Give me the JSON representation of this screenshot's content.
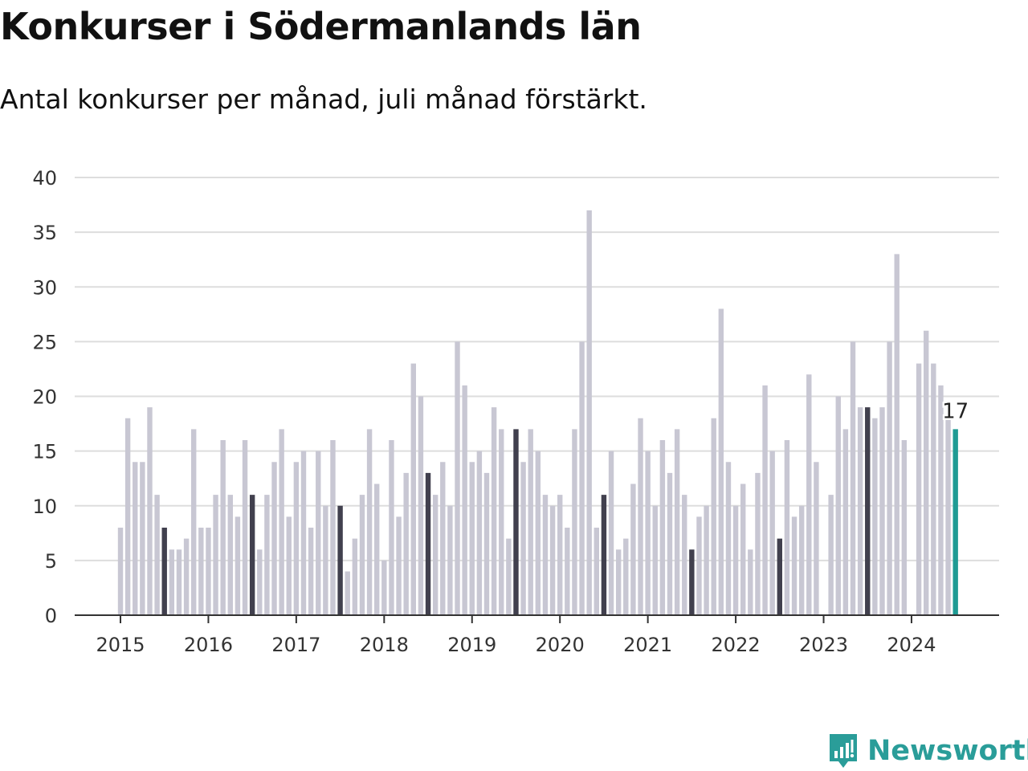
{
  "title": "Konkurser i Södermanlands län",
  "subtitle": "Antal konkurser per månad, juli månad förstärkt.",
  "brand": {
    "name": "Newsworthy"
  },
  "colors": {
    "bar": "#c8c7d3",
    "july": "#41404e",
    "latest": "#1f9b94",
    "grid": "#dddddd",
    "axis": "#333333"
  },
  "chart_data": {
    "type": "bar",
    "start": "2015-01",
    "x_ticks": [
      "2015",
      "2016",
      "2017",
      "2018",
      "2019",
      "2020",
      "2021",
      "2022",
      "2023",
      "2024"
    ],
    "y_ticks": [
      "0",
      "5",
      "10",
      "15",
      "20",
      "25",
      "30",
      "35",
      "40"
    ],
    "ylim": [
      0,
      40
    ],
    "grid": true,
    "highlight_month": "juli",
    "values": [
      8,
      18,
      14,
      14,
      19,
      11,
      8,
      6,
      6,
      7,
      17,
      8,
      8,
      11,
      16,
      11,
      9,
      16,
      11,
      6,
      11,
      14,
      17,
      9,
      14,
      15,
      8,
      15,
      10,
      16,
      10,
      4,
      7,
      11,
      17,
      12,
      5,
      16,
      9,
      13,
      23,
      20,
      13,
      11,
      14,
      10,
      25,
      21,
      14,
      15,
      13,
      19,
      17,
      7,
      17,
      14,
      17,
      15,
      11,
      10,
      11,
      8,
      17,
      25,
      37,
      8,
      11,
      15,
      6,
      7,
      12,
      18,
      15,
      10,
      16,
      13,
      17,
      11,
      6,
      9,
      10,
      18,
      28,
      14,
      10,
      12,
      6,
      13,
      21,
      15,
      7,
      16,
      9,
      10,
      22,
      14,
      0,
      11,
      20,
      17,
      25,
      19,
      19,
      18,
      19,
      25,
      33,
      16,
      0,
      23,
      26,
      23,
      21,
      18,
      17
    ],
    "last_label": "17"
  }
}
